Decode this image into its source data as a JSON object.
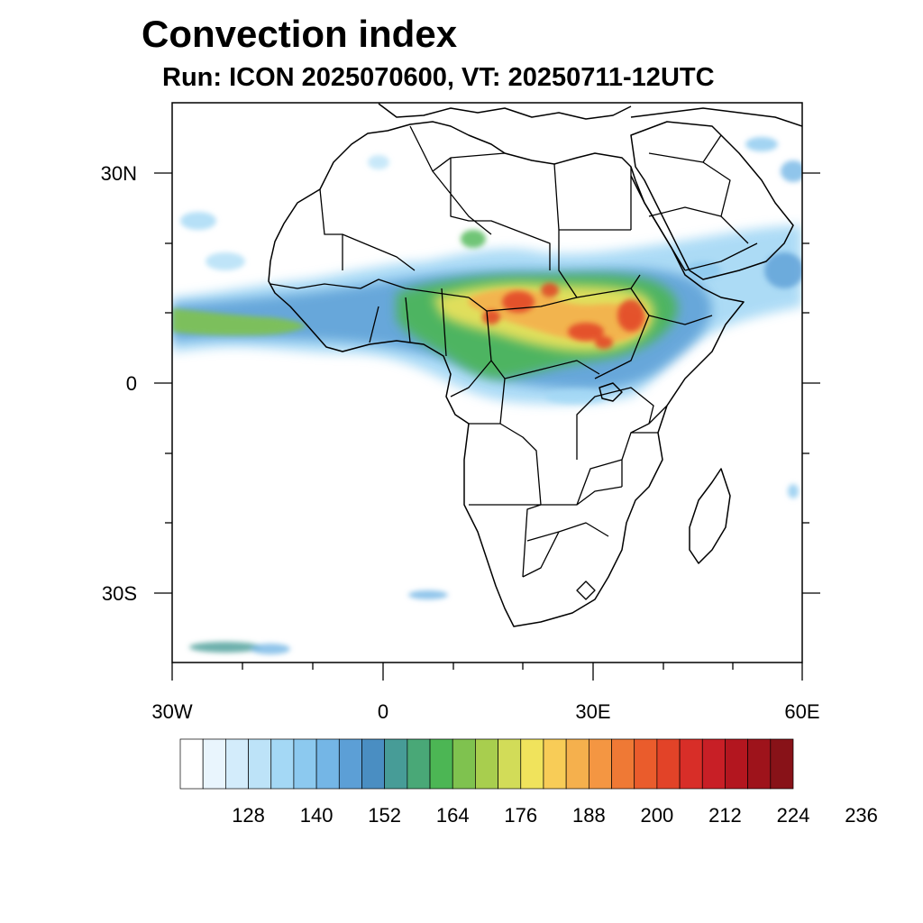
{
  "title": "Convection index",
  "subtitle": "Run: ICON 2025070600,  VT: 20250711-12UTC",
  "map": {
    "x_ticks": [
      "30W",
      "0",
      "30E",
      "60E"
    ],
    "y_ticks": [
      "30N",
      "0",
      "30S"
    ]
  },
  "colorbar": {
    "colors": [
      "#ffffff",
      "#e9f5fd",
      "#d3ecfb",
      "#bde3f8",
      "#a4d8f5",
      "#8cc9ef",
      "#74b6e6",
      "#5c9fd6",
      "#4a8ec2",
      "#479c97",
      "#49a877",
      "#4cb654",
      "#7fc24f",
      "#a8ce4e",
      "#d2dc58",
      "#f0e35c",
      "#f8cc57",
      "#f5b04d",
      "#f49642",
      "#ef7935",
      "#ea5c2c",
      "#e24328",
      "#d82e28",
      "#c81f26",
      "#b3161f",
      "#9e131b",
      "#881218"
    ],
    "labels": [
      "128",
      "140",
      "152",
      "164",
      "176",
      "188",
      "200",
      "212",
      "224",
      "236"
    ]
  }
}
